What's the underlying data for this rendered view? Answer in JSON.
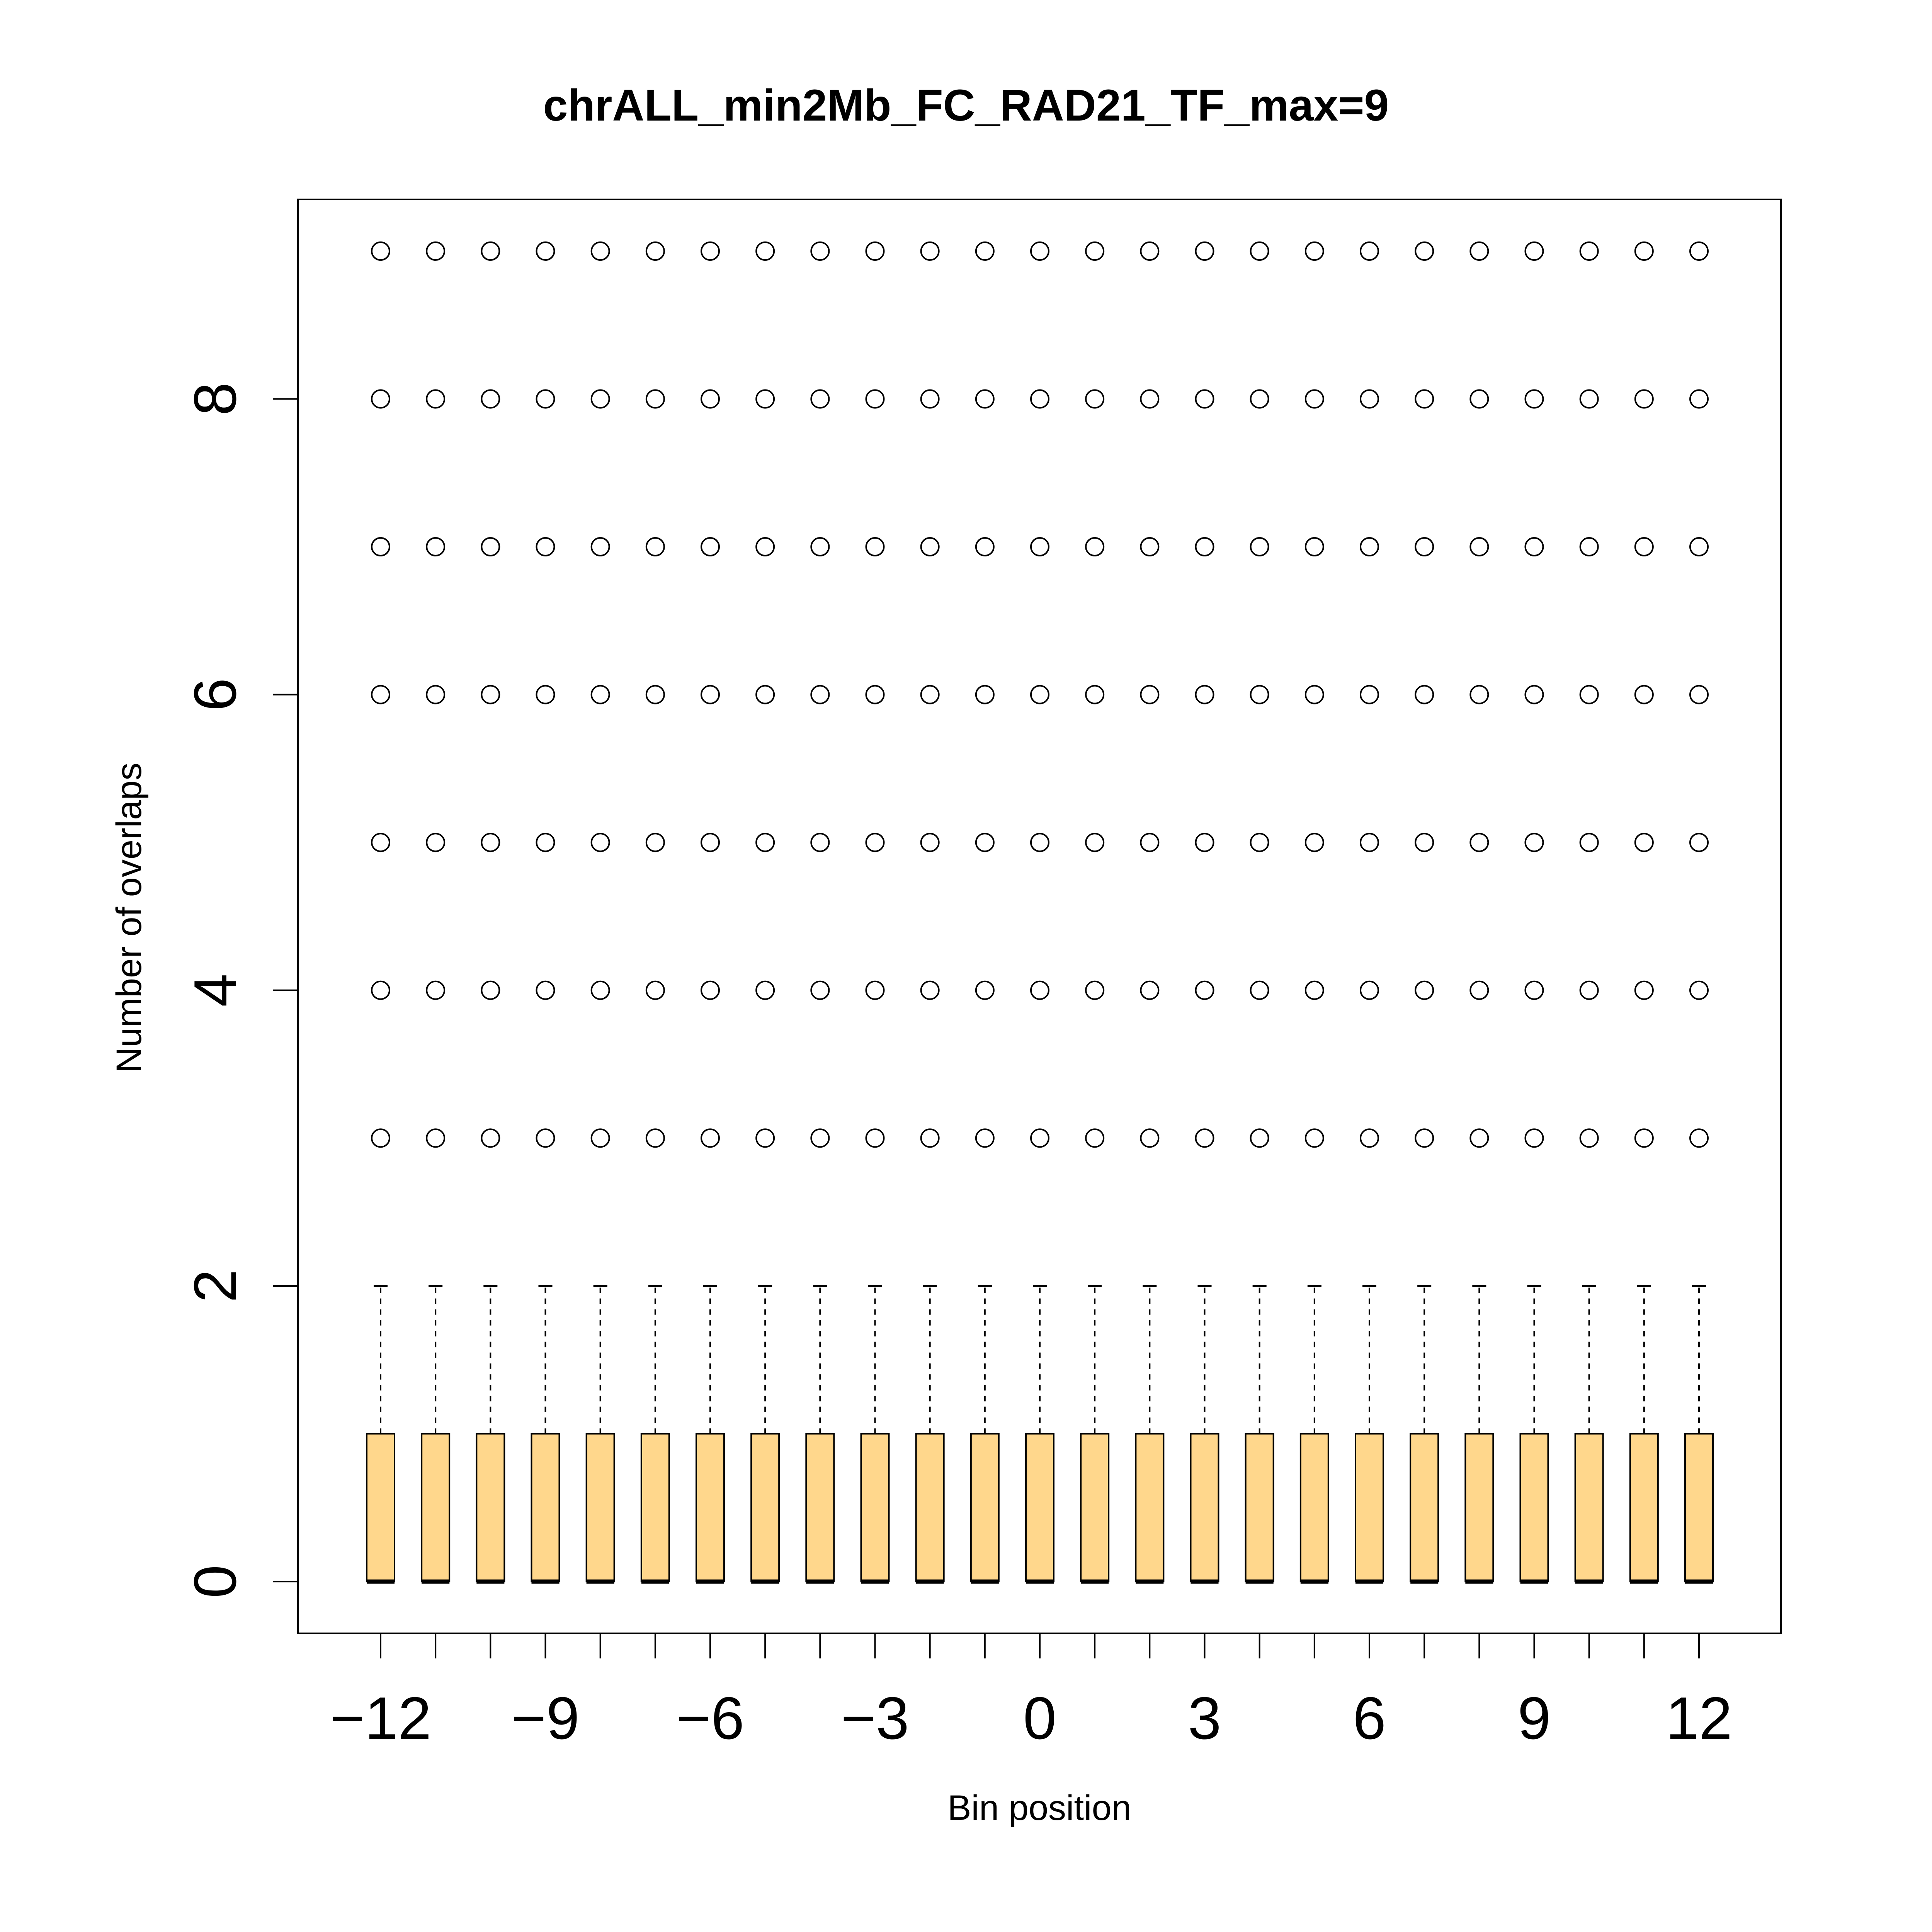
{
  "chart_data": {
    "type": "boxplot",
    "title": "chrALL_min2Mb_FC_RAD21_TF_max=9",
    "xlabel": "Bin position",
    "ylabel": "Number of overlaps",
    "x_positions": [
      -12,
      -11,
      -10,
      -9,
      -8,
      -7,
      -6,
      -5,
      -4,
      -3,
      -2,
      -1,
      0,
      1,
      2,
      3,
      4,
      5,
      6,
      7,
      8,
      9,
      10,
      11,
      12
    ],
    "x_tick_labels": [
      "−12",
      "−9",
      "−6",
      "−3",
      "0",
      "3",
      "6",
      "9",
      "12"
    ],
    "x_tick_label_values": [
      -12,
      -9,
      -6,
      -3,
      0,
      3,
      6,
      9,
      12
    ],
    "y_ticks": [
      0,
      2,
      4,
      6,
      8
    ],
    "y_tick_labels": [
      "0",
      "2",
      "4",
      "6",
      "8"
    ],
    "ylim": [
      -0.35,
      9.35
    ],
    "box_stats": {
      "whisker_low": 0,
      "q1": 0,
      "median": 0,
      "q3": 1,
      "whisker_high": 2,
      "outliers": [
        3,
        4,
        5,
        6,
        7,
        8,
        9
      ]
    },
    "colors": {
      "box_fill": "#FFD78C",
      "stroke": "#000000",
      "background": "#FFFFFF"
    },
    "grid": false,
    "legend": "none"
  }
}
